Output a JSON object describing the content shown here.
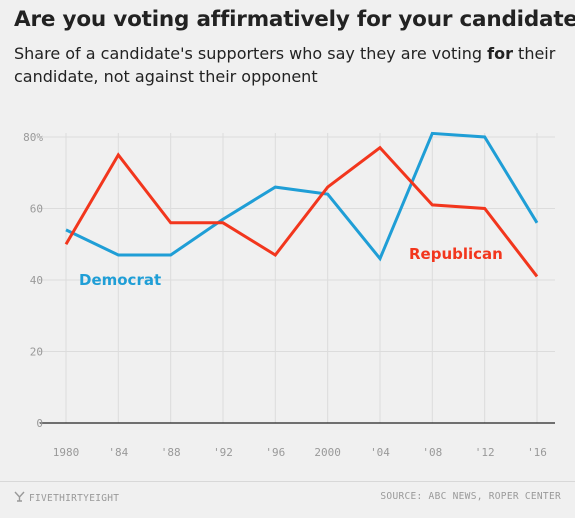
{
  "header": {
    "title": "Are you voting affirmatively for your candidate?",
    "subtitle_before": "Share of a candidate's supporters who say they are voting ",
    "subtitle_bold": "for",
    "subtitle_after": " their candidate, not against their opponent"
  },
  "footer": {
    "brand": "FIVETHIRTYEIGHT",
    "brand_icon": "fivethirtyeight-logo-icon",
    "source": "SOURCE: ABC NEWS, ROPER CENTER"
  },
  "chart_data": {
    "type": "line",
    "categories": [
      "1980",
      "'84",
      "'88",
      "'92",
      "'96",
      "2000",
      "'04",
      "'08",
      "'12",
      "'16"
    ],
    "ylim": [
      0,
      80
    ],
    "yticks": [
      0,
      20,
      40,
      60,
      80
    ],
    "ytick_labels": [
      "0",
      "20",
      "40",
      "60",
      "80%"
    ],
    "grid": true,
    "series": [
      {
        "name": "Democrat",
        "color": "#1f9ed6",
        "values": [
          54,
          47,
          47,
          57,
          66,
          64,
          46,
          81,
          80,
          56
        ]
      },
      {
        "name": "Republican",
        "color": "#f2361d",
        "values": [
          50,
          75,
          56,
          56,
          47,
          66,
          77,
          61,
          60,
          41
        ]
      }
    ]
  }
}
